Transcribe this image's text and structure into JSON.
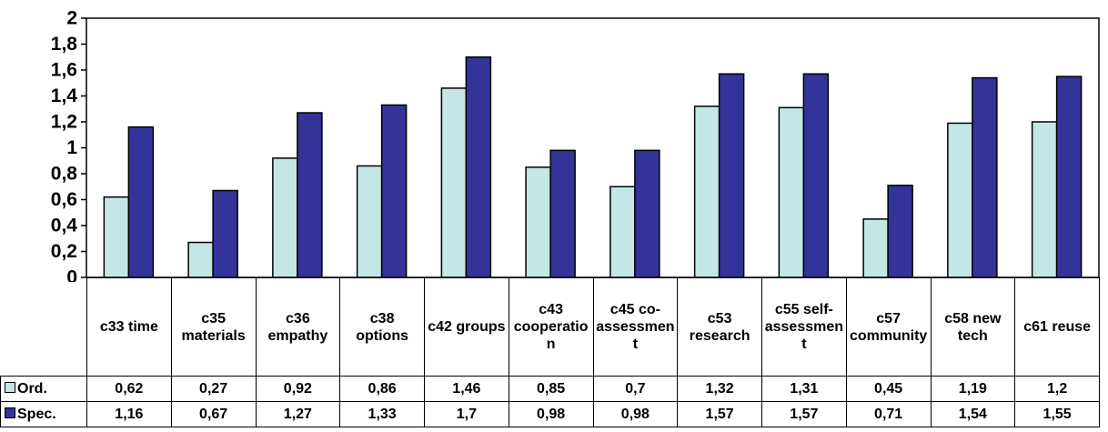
{
  "chart_data": {
    "type": "bar",
    "categories": [
      "c33 time",
      "c35 materials",
      "c36 empathy",
      "c38 options",
      "c42 groups",
      "c43 cooperation",
      "c45 co-assessment",
      "c53 research",
      "c55 self-assessment",
      "c57 community",
      "c58 new tech",
      "c61 reuse"
    ],
    "series": [
      {
        "name": "Ord.",
        "color": "#c3e6e6",
        "values": [
          0.62,
          0.27,
          0.92,
          0.86,
          1.46,
          0.85,
          0.7,
          1.32,
          1.31,
          0.45,
          1.19,
          1.2
        ],
        "value_labels": [
          "0,62",
          "0,27",
          "0,92",
          "0,86",
          "1,46",
          "0,85",
          "0,7",
          "1,32",
          "1,31",
          "0,45",
          "1,19",
          "1,2"
        ]
      },
      {
        "name": "Spec.",
        "color": "#333399",
        "values": [
          1.16,
          0.67,
          1.27,
          1.33,
          1.7,
          0.98,
          0.98,
          1.57,
          1.57,
          0.71,
          1.54,
          1.55
        ],
        "value_labels": [
          "1,16",
          "0,67",
          "1,27",
          "1,33",
          "1,7",
          "0,98",
          "0,98",
          "1,57",
          "1,57",
          "0,71",
          "1,54",
          "1,55"
        ]
      }
    ],
    "ylim": [
      0,
      2
    ],
    "yticks": [
      0,
      {
        "value": 0.2,
        "label": "0,2"
      },
      {
        "value": 0.4,
        "label": "0,4"
      },
      {
        "value": 0.6,
        "label": "0,6"
      },
      {
        "value": 0.8,
        "label": "0,8"
      },
      1,
      {
        "value": 1.2,
        "label": "1,2"
      },
      {
        "value": 1.4,
        "label": "1,4"
      },
      {
        "value": 1.6,
        "label": "1,6"
      },
      {
        "value": 1.8,
        "label": "1,8"
      },
      2
    ],
    "grid": false
  }
}
